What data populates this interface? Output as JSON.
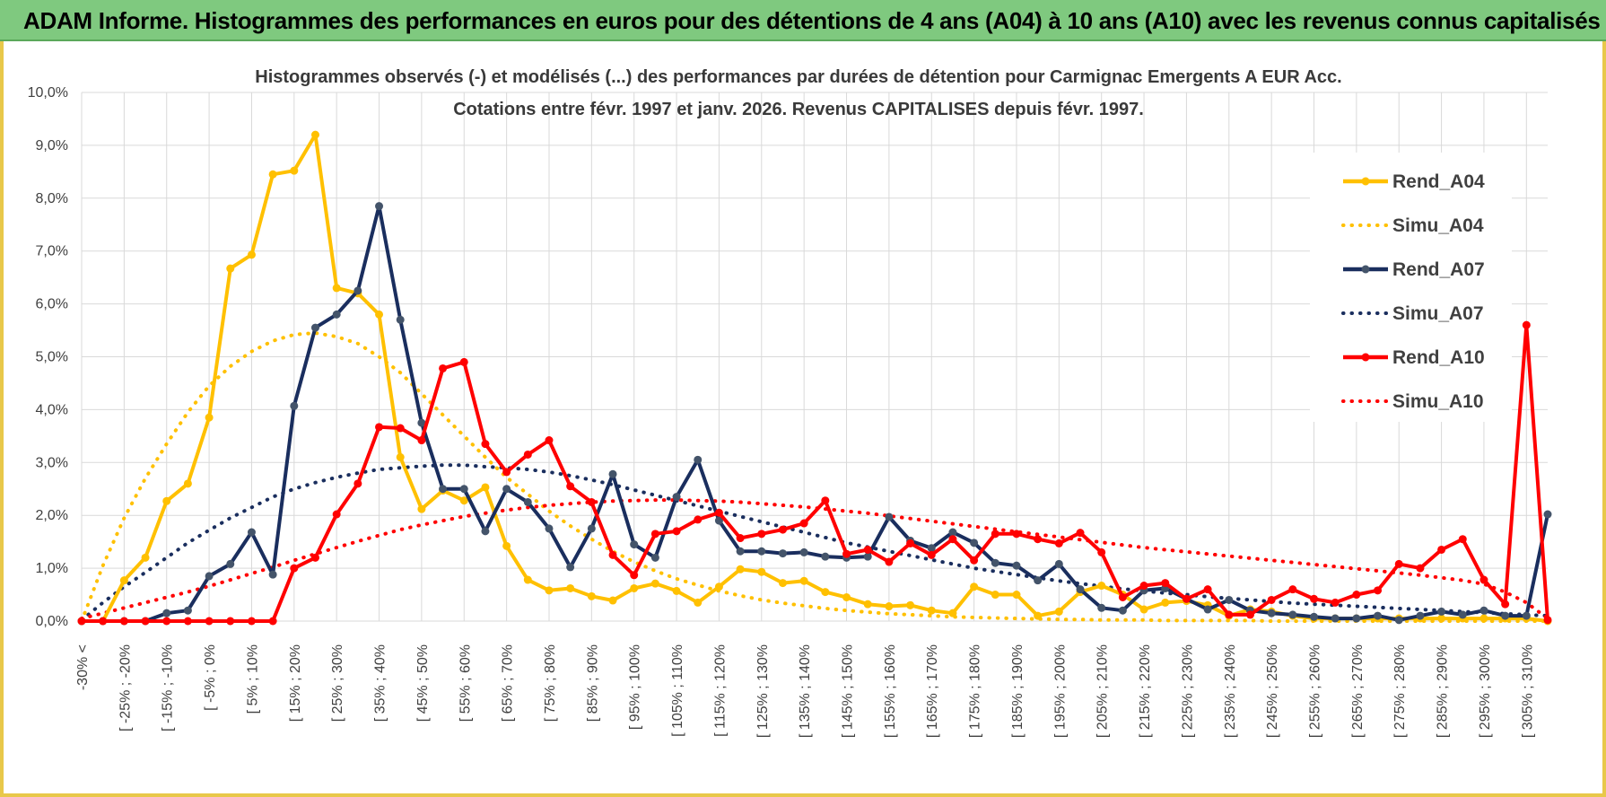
{
  "banner": {
    "title": "ADAM Informe. Histogrammes des performances en euros pour des détentions de 4 ans (A04) à 10 ans (A10) avec les revenus connus capitalisés"
  },
  "colors": {
    "banner_bg": "#7fc97f",
    "A04": "#ffc000",
    "A07": "#1a2e5e",
    "A07_marker": "#44546a",
    "A10": "#ff0000",
    "grid": "#d9d9d9",
    "frame": "#e8c84a"
  },
  "chart_data": {
    "type": "line",
    "title_lines": [
      "Histogrammes observés (-) et modélisés (...) des performances par durées de détention pour Carmignac Emergents A EUR Acc.",
      "Cotations entre févr. 1997 et janv. 2026. Revenus CAPITALISES depuis févr. 1997."
    ],
    "xlabel": "",
    "ylabel": "",
    "ylim": [
      0,
      10
    ],
    "y_ticks": [
      "0,0%",
      "1,0%",
      "2,0%",
      "3,0%",
      "4,0%",
      "5,0%",
      "6,0%",
      "7,0%",
      "8,0%",
      "9,0%",
      "10,0%"
    ],
    "x_tick_labels": [
      "-30% <",
      "[ -25% ; -20%",
      "[ -15% ; -10%",
      "[ -5% ; 0%",
      "[ 5% ; 10%",
      "[ 15% ; 20%",
      "[ 25% ; 30%",
      "[ 35% ; 40%",
      "[ 45% ; 50%",
      "[ 55% ; 60%",
      "[ 65% ; 70%",
      "[ 75% ; 80%",
      "[ 85% ; 90%",
      "[ 95% ; 100%",
      "[ 105% ; 110%",
      "[ 115% ; 120%",
      "[ 125% ; 130%",
      "[ 135% ; 140%",
      "[ 145% ; 150%",
      "[ 155% ; 160%",
      "[ 165% ; 170%",
      "[ 175% ; 180%",
      "[ 185% ; 190%",
      "[ 195% ; 200%",
      "[ 205% ; 210%",
      "[ 215% ; 220%",
      "[ 225% ; 230%",
      "[ 235% ; 240%",
      "[ 245% ; 250%",
      "[ 255% ; 260%",
      "[ 265% ; 270%",
      "[ 275% ; 280%",
      "[ 285% ; 290%",
      "[ 295% ; 300%",
      "[ 305% ; 310%"
    ],
    "n_points": 70,
    "legend_position": "top-right",
    "series": [
      {
        "name": "Rend_A04",
        "style": "solid",
        "color": "#ffc000",
        "marker": "#ffc000",
        "values": [
          0.0,
          0.0,
          0.77,
          1.2,
          2.27,
          2.6,
          3.85,
          6.67,
          6.93,
          8.45,
          8.52,
          9.2,
          6.3,
          6.2,
          5.8,
          3.1,
          2.12,
          2.47,
          2.28,
          2.53,
          1.42,
          0.78,
          0.58,
          0.62,
          0.47,
          0.39,
          0.62,
          0.71,
          0.57,
          0.35,
          0.65,
          0.98,
          0.93,
          0.72,
          0.76,
          0.55,
          0.45,
          0.32,
          0.28,
          0.3,
          0.2,
          0.15,
          0.65,
          0.5,
          0.5,
          0.1,
          0.18,
          0.55,
          0.67,
          0.5,
          0.22,
          0.35,
          0.38,
          0.3,
          0.1,
          0.22,
          0.18,
          0.1,
          0.05,
          0.05,
          0.05,
          0.05,
          0.05,
          0.05,
          0.05,
          0.05,
          0.05,
          0.05,
          0.05,
          0.0
        ]
      },
      {
        "name": "Simu_A04",
        "style": "dotted",
        "color": "#ffc000",
        "values": [
          0.0,
          1.05,
          1.95,
          2.7,
          3.35,
          3.95,
          4.45,
          4.82,
          5.1,
          5.3,
          5.42,
          5.45,
          5.38,
          5.25,
          5.0,
          4.7,
          4.3,
          3.9,
          3.5,
          3.1,
          2.72,
          2.4,
          2.08,
          1.8,
          1.55,
          1.32,
          1.12,
          0.95,
          0.8,
          0.68,
          0.57,
          0.48,
          0.4,
          0.34,
          0.29,
          0.24,
          0.2,
          0.17,
          0.14,
          0.12,
          0.1,
          0.08,
          0.07,
          0.06,
          0.05,
          0.04,
          0.03,
          0.03,
          0.02,
          0.02,
          0.02,
          0.01,
          0.01,
          0.01,
          0.01,
          0.01,
          0.0,
          0.0,
          0.0,
          0.0,
          0.0,
          0.0,
          0.0,
          0.0,
          0.0,
          0.0,
          0.0,
          0.0,
          0.0,
          0.0
        ]
      },
      {
        "name": "Rend_A07",
        "style": "solid",
        "color": "#1a2e5e",
        "marker": "#44546a",
        "values": [
          0.0,
          0.0,
          0.0,
          0.0,
          0.15,
          0.2,
          0.85,
          1.08,
          1.68,
          0.88,
          4.07,
          5.55,
          5.8,
          6.25,
          7.85,
          5.7,
          3.75,
          2.5,
          2.5,
          1.7,
          2.5,
          2.25,
          1.75,
          1.02,
          1.75,
          2.78,
          1.45,
          1.2,
          2.35,
          3.05,
          1.9,
          1.32,
          1.32,
          1.28,
          1.3,
          1.22,
          1.2,
          1.22,
          1.97,
          1.52,
          1.38,
          1.68,
          1.48,
          1.1,
          1.05,
          0.77,
          1.08,
          0.6,
          0.25,
          0.2,
          0.58,
          0.62,
          0.42,
          0.22,
          0.4,
          0.2,
          0.15,
          0.12,
          0.08,
          0.05,
          0.05,
          0.1,
          0.02,
          0.1,
          0.18,
          0.12,
          0.2,
          0.1,
          0.1,
          2.02
        ]
      },
      {
        "name": "Simu_A07",
        "style": "dotted",
        "color": "#1a2e5e",
        "values": [
          0.02,
          0.35,
          0.65,
          0.92,
          1.2,
          1.48,
          1.72,
          1.95,
          2.15,
          2.35,
          2.5,
          2.62,
          2.72,
          2.8,
          2.87,
          2.9,
          2.93,
          2.95,
          2.95,
          2.92,
          2.9,
          2.87,
          2.82,
          2.75,
          2.67,
          2.58,
          2.48,
          2.38,
          2.28,
          2.18,
          2.08,
          1.98,
          1.88,
          1.78,
          1.68,
          1.58,
          1.48,
          1.4,
          1.32,
          1.24,
          1.16,
          1.08,
          1.0,
          0.94,
          0.88,
          0.82,
          0.76,
          0.71,
          0.66,
          0.61,
          0.57,
          0.53,
          0.5,
          0.46,
          0.43,
          0.4,
          0.37,
          0.34,
          0.32,
          0.3,
          0.28,
          0.26,
          0.24,
          0.22,
          0.2,
          0.18,
          0.16,
          0.14,
          0.12,
          0.1
        ]
      },
      {
        "name": "Rend_A10",
        "style": "solid",
        "color": "#ff0000",
        "marker": "#ff0000",
        "values": [
          0.0,
          0.0,
          0.0,
          0.0,
          0.0,
          0.0,
          0.0,
          0.0,
          0.0,
          0.0,
          1.0,
          1.2,
          2.02,
          2.6,
          3.67,
          3.65,
          3.42,
          4.78,
          4.9,
          3.35,
          2.82,
          3.15,
          3.42,
          2.55,
          2.25,
          1.25,
          0.87,
          1.65,
          1.7,
          1.92,
          2.05,
          1.57,
          1.65,
          1.73,
          1.85,
          2.28,
          1.27,
          1.35,
          1.12,
          1.47,
          1.25,
          1.55,
          1.15,
          1.65,
          1.65,
          1.55,
          1.47,
          1.67,
          1.3,
          0.45,
          0.67,
          0.72,
          0.42,
          0.6,
          0.12,
          0.12,
          0.4,
          0.6,
          0.42,
          0.35,
          0.5,
          0.58,
          1.08,
          1.0,
          1.35,
          1.55,
          0.78,
          0.32,
          5.6,
          0.02
        ]
      },
      {
        "name": "Simu_A10",
        "style": "dotted",
        "color": "#ff0000",
        "values": [
          0.05,
          0.15,
          0.25,
          0.35,
          0.45,
          0.55,
          0.66,
          0.78,
          0.9,
          1.02,
          1.15,
          1.27,
          1.39,
          1.51,
          1.62,
          1.73,
          1.82,
          1.9,
          1.98,
          2.04,
          2.1,
          2.15,
          2.19,
          2.22,
          2.25,
          2.27,
          2.28,
          2.29,
          2.29,
          2.28,
          2.27,
          2.25,
          2.22,
          2.19,
          2.16,
          2.12,
          2.08,
          2.04,
          1.99,
          1.94,
          1.89,
          1.84,
          1.79,
          1.74,
          1.69,
          1.64,
          1.59,
          1.54,
          1.49,
          1.44,
          1.39,
          1.35,
          1.31,
          1.27,
          1.23,
          1.19,
          1.15,
          1.11,
          1.07,
          1.03,
          0.99,
          0.95,
          0.91,
          0.87,
          0.82,
          0.77,
          0.7,
          0.55,
          0.35,
          0.05
        ]
      }
    ]
  }
}
